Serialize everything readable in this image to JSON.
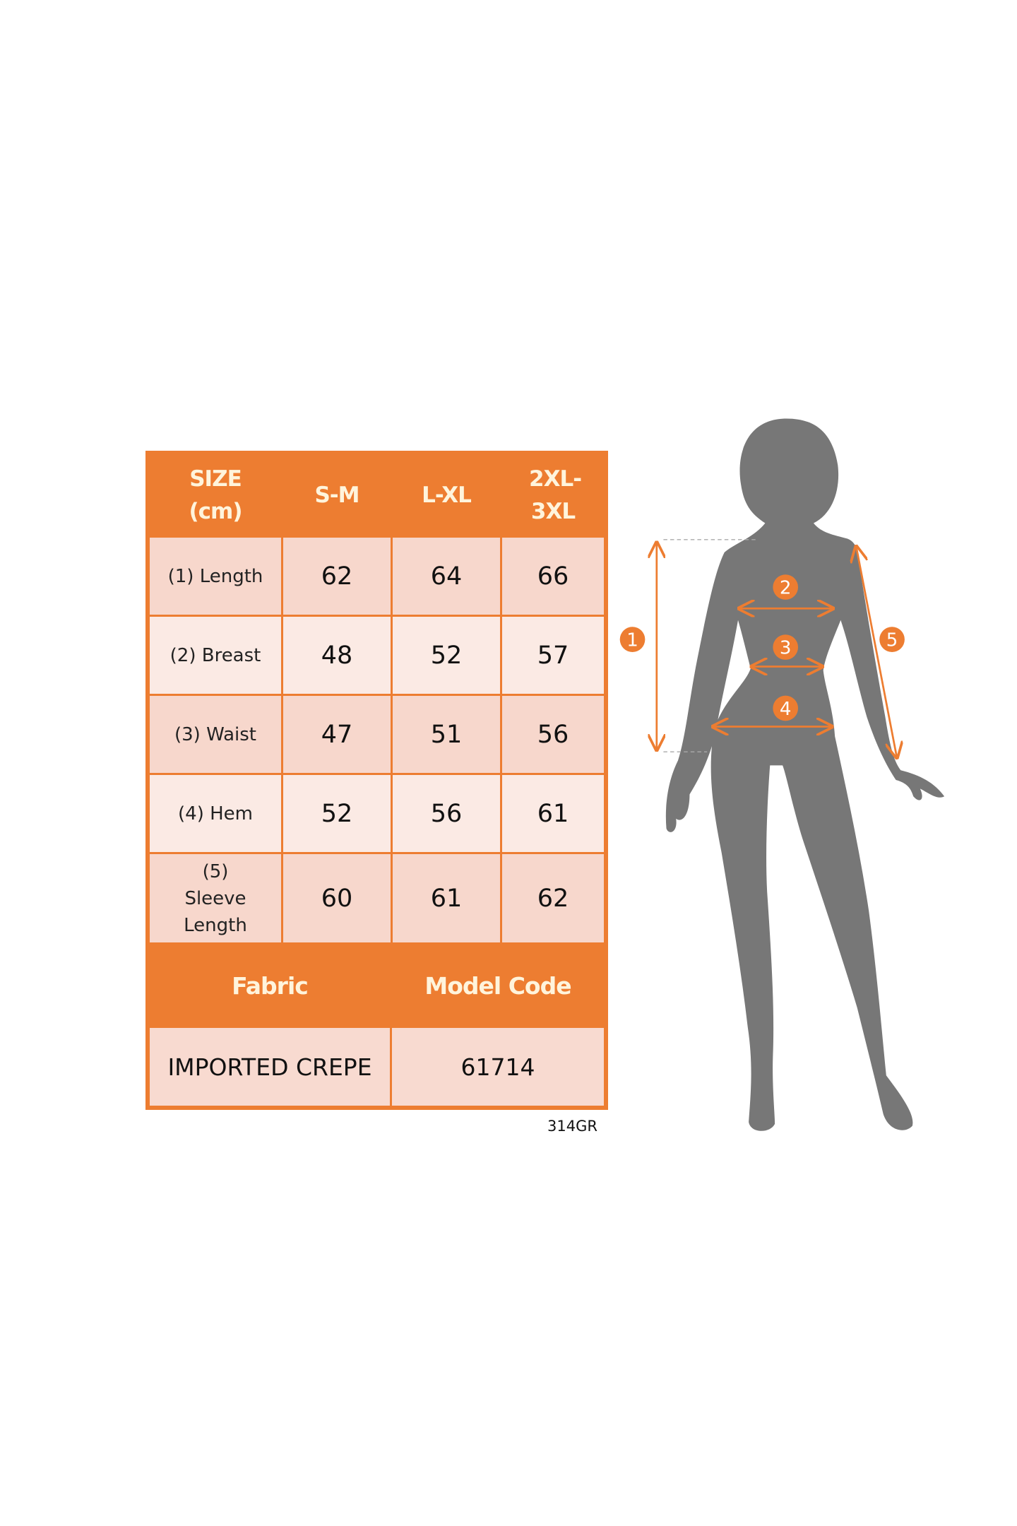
{
  "table": {
    "header": [
      "SIZE (cm)",
      "S-M",
      "L-XL",
      "2XL-3XL"
    ],
    "rows": [
      {
        "label": "(1) Length",
        "values": [
          "62",
          "64",
          "66"
        ]
      },
      {
        "label": "(2) Breast",
        "values": [
          "48",
          "52",
          "57"
        ]
      },
      {
        "label": "(3) Waist",
        "values": [
          "47",
          "51",
          "56"
        ]
      },
      {
        "label": "(4) Hem",
        "values": [
          "52",
          "56",
          "61"
        ]
      },
      {
        "label": "(5) Sleeve Length",
        "values": [
          "60",
          "61",
          "62"
        ]
      }
    ],
    "footer_headers": [
      "Fabric",
      "Model Code"
    ],
    "footer_values": [
      "IMPORTED CREPE",
      "61714"
    ]
  },
  "code_label": "314GR",
  "figure": {
    "markers": [
      "1",
      "2",
      "3",
      "4",
      "5"
    ]
  },
  "colors": {
    "accent": "#ED7D31",
    "cell_dark": "#F7D7CC",
    "cell_light": "#FBEAE4",
    "silhouette": "#777777"
  }
}
